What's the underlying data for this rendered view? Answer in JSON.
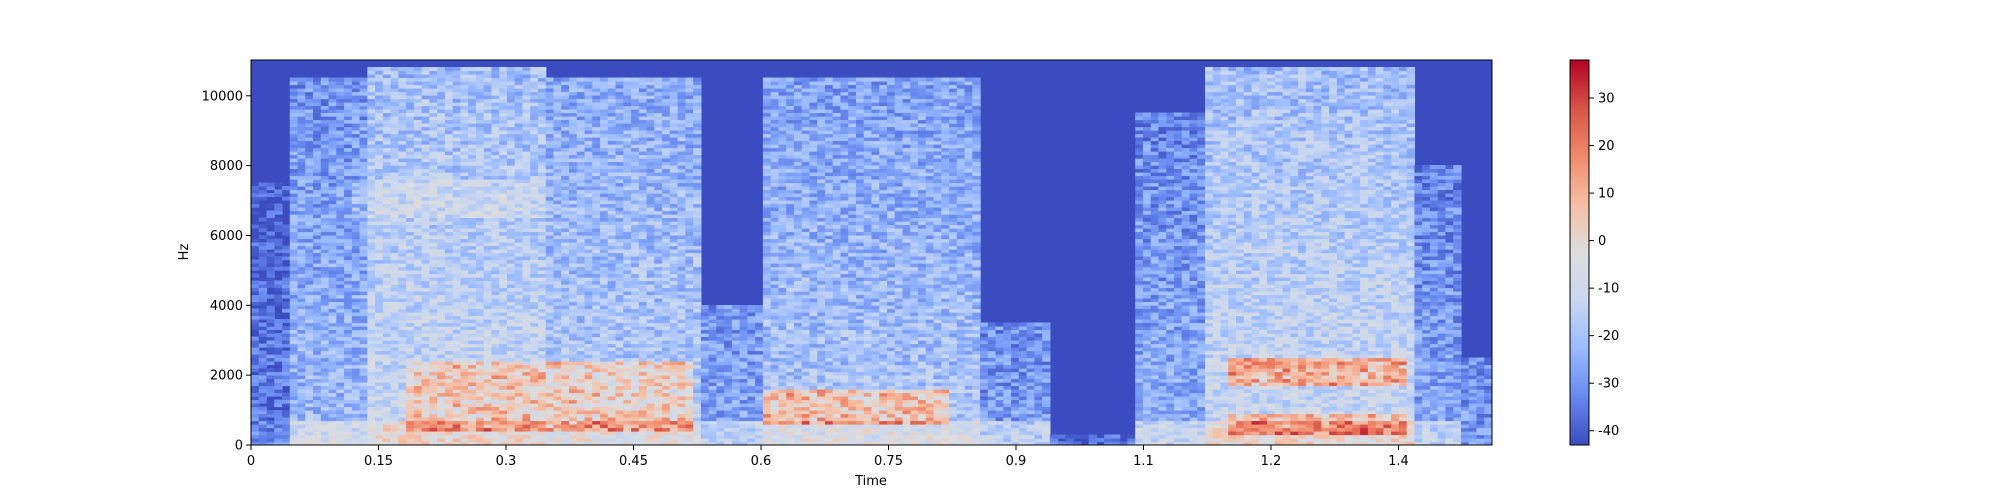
{
  "chart_data": {
    "type": "heatmap",
    "title": "",
    "xlabel": "Time",
    "ylabel": "Hz",
    "xlim": [
      0,
      1.46
    ],
    "ylim": [
      0,
      11025
    ],
    "x_ticks": [
      "0",
      "0.15",
      "0.3",
      "0.45",
      "0.6",
      "0.75",
      "0.9",
      "1.1",
      "1.2",
      "1.4"
    ],
    "x_tick_values": [
      0,
      0.15,
      0.3,
      0.45,
      0.6,
      0.75,
      0.9,
      1.05,
      1.2,
      1.35
    ],
    "y_ticks": [
      "0",
      "2000",
      "4000",
      "6000",
      "8000",
      "10000"
    ],
    "y_tick_values": [
      0,
      2000,
      4000,
      6000,
      8000,
      10000
    ],
    "colorbar": {
      "colormap": "coolwarm",
      "range": [
        -43,
        38
      ],
      "ticks": [
        "-40",
        "-30",
        "-20",
        "-10",
        "0",
        "10",
        "20",
        "30"
      ],
      "tick_values": [
        -40,
        -30,
        -20,
        -10,
        0,
        10,
        20,
        30
      ],
      "colors": [
        "#3b4cc0",
        "#6788ee",
        "#9abbff",
        "#c9d7f0",
        "#dddddd",
        "#f6bfa6",
        "#f08a6c",
        "#d75445",
        "#b40426"
      ]
    },
    "floor_db": -43,
    "segments": [
      {
        "t_start": 0.0,
        "t_end": 0.05,
        "f_max": 7500,
        "level_db": -38
      },
      {
        "t_start": 0.05,
        "t_end": 0.14,
        "f_max": 10500,
        "level_db": -25
      },
      {
        "t_start": 0.14,
        "t_end": 0.35,
        "f_max": 10800,
        "level_db": -15
      },
      {
        "t_start": 0.35,
        "t_end": 0.53,
        "f_max": 10500,
        "level_db": -20
      },
      {
        "t_start": 0.53,
        "t_end": 0.6,
        "f_max": 4000,
        "level_db": -30
      },
      {
        "t_start": 0.6,
        "t_end": 0.86,
        "f_max": 10500,
        "level_db": -22
      },
      {
        "t_start": 0.86,
        "t_end": 0.94,
        "f_max": 3500,
        "level_db": -32
      },
      {
        "t_start": 0.94,
        "t_end": 1.04,
        "f_max": 300,
        "level_db": -40
      },
      {
        "t_start": 1.04,
        "t_end": 1.12,
        "f_max": 9500,
        "level_db": -28
      },
      {
        "t_start": 1.12,
        "t_end": 1.37,
        "f_max": 10800,
        "level_db": -15
      },
      {
        "t_start": 1.37,
        "t_end": 1.42,
        "f_max": 8000,
        "level_db": -30
      },
      {
        "t_start": 1.42,
        "t_end": 1.46,
        "f_max": 2500,
        "level_db": -33
      }
    ],
    "hot_bands": [
      {
        "t_start": 0.18,
        "t_end": 0.52,
        "f_low": 400,
        "f_high": 2400,
        "level_db": 8
      },
      {
        "t_start": 0.6,
        "t_end": 0.82,
        "f_low": 600,
        "f_high": 1600,
        "level_db": 10
      },
      {
        "t_start": 1.15,
        "t_end": 1.36,
        "f_low": 1700,
        "f_high": 2500,
        "level_db": 15
      },
      {
        "t_start": 1.15,
        "t_end": 1.36,
        "f_low": 300,
        "f_high": 900,
        "level_db": 12
      }
    ]
  }
}
